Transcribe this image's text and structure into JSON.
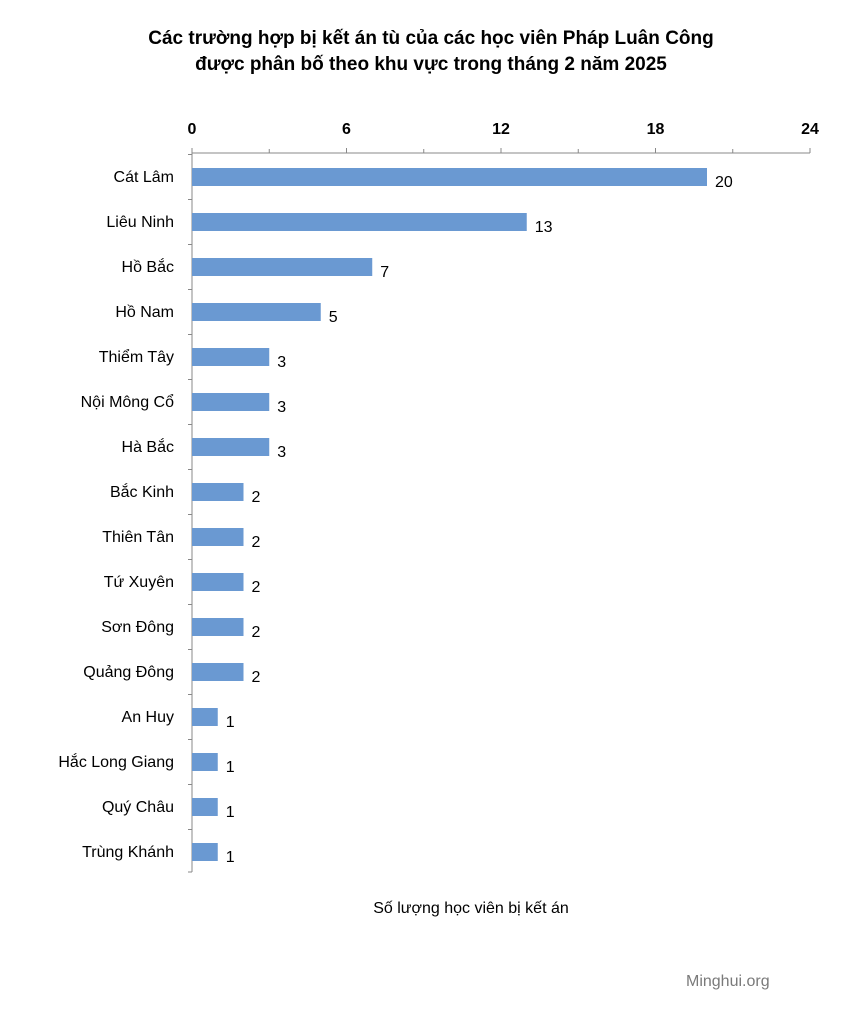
{
  "title_line1": "Các trường hợp bị kết án tù của các học viên Pháp Luân Công",
  "title_line2": "được phân bố theo khu vực trong tháng 2 năm 2025",
  "watermark": "Minghui.org",
  "colors": {
    "bar": "#6a99d2",
    "axis": "#888888"
  },
  "chart_data": {
    "type": "bar",
    "orientation": "horizontal",
    "title": "Các trường hợp bị kết án tù của các học viên Pháp Luân Công được phân bố theo khu vực trong tháng 2 năm 2025",
    "xlabel": "Số lượng học viên bị kết án",
    "ylabel": "",
    "xlim": [
      0,
      24
    ],
    "x_ticks": [
      0,
      6,
      12,
      18,
      24
    ],
    "axis_position": "top",
    "grid": false,
    "categories": [
      "Cát Lâm",
      "Liêu Ninh",
      "Hồ Bắc",
      "Hồ Nam",
      "Thiểm Tây",
      "Nội Mông Cổ",
      "Hà Bắc",
      "Bắc Kinh",
      "Thiên Tân",
      "Tứ Xuyên",
      "Sơn Đông",
      "Quảng Đông",
      "An Huy",
      "Hắc Long Giang",
      "Quý Châu",
      "Trùng Khánh"
    ],
    "values": [
      20,
      13,
      7,
      5,
      3,
      3,
      3,
      2,
      2,
      2,
      2,
      2,
      1,
      1,
      1,
      1
    ]
  }
}
